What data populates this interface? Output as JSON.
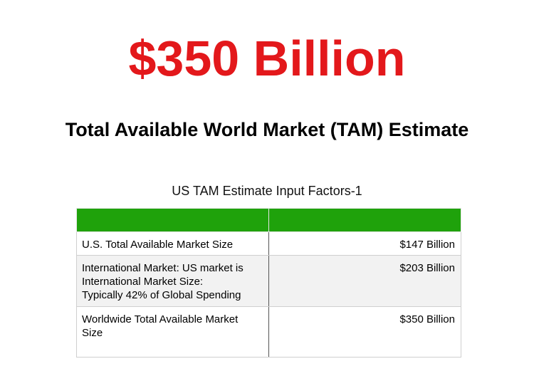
{
  "headline": "$350 Billion",
  "subtitle": "Total Available World Market (TAM) Estimate",
  "table": {
    "caption": "US TAM Estimate Input Factors-1",
    "header_color": "#1fa20b",
    "rows": [
      {
        "label_lines": [
          "U.S. Total Available Market Size"
        ],
        "value": "$147 Billion"
      },
      {
        "label_lines": [
          "International Market: US market is",
          "International Market Size:",
          "Typically 42% of Global Spending"
        ],
        "value": "$203 Billion"
      },
      {
        "label_lines": [
          "Worldwide Total Available Market",
          "Size"
        ],
        "value": "$350 Billion"
      }
    ]
  },
  "colors": {
    "headline": "#e3181b"
  }
}
